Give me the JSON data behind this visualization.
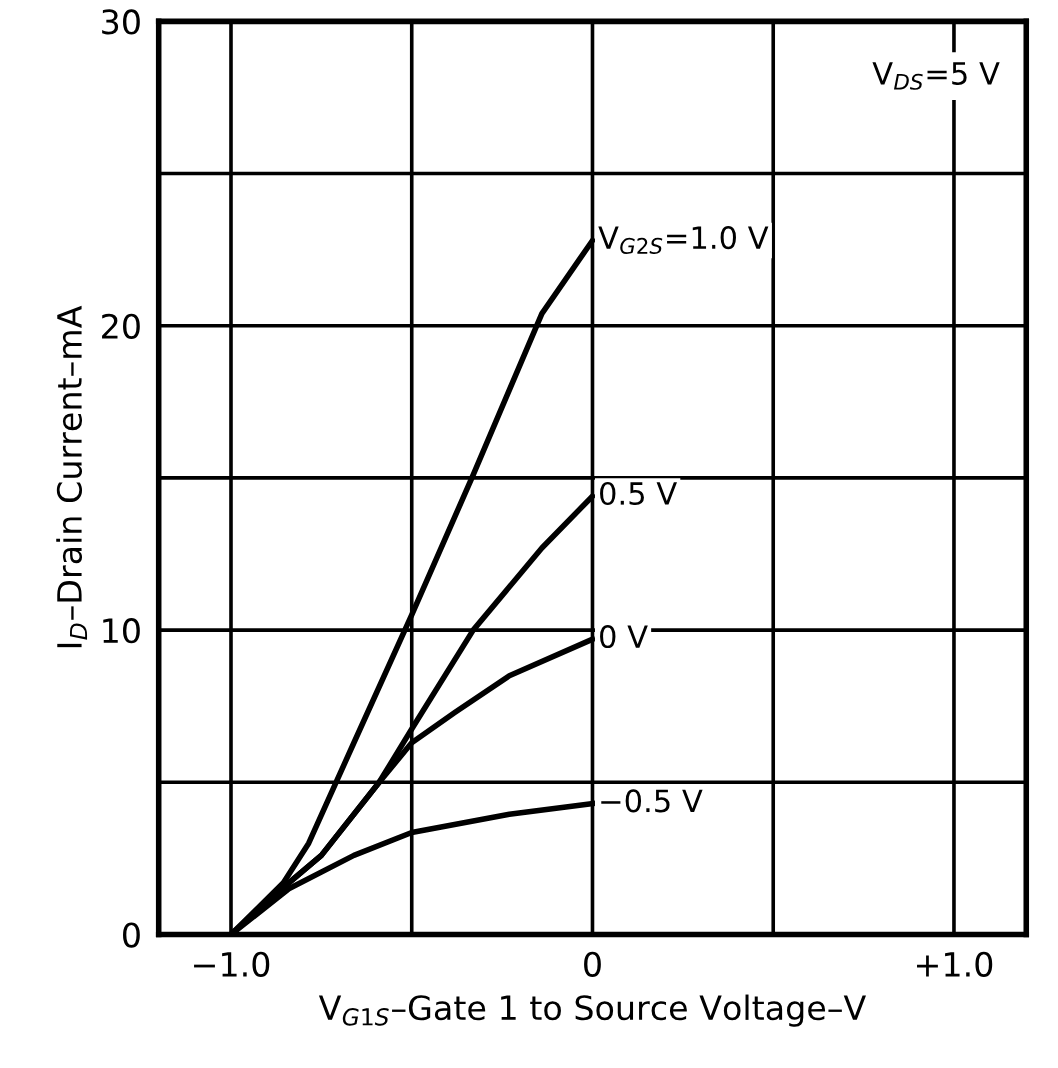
{
  "chart_data": {
    "type": "line",
    "xlabel": "V$_{G1S}$–Gate 1 to Source Voltage–V",
    "ylabel": "I$_{D}$–Drain Current–mA",
    "annotations": [
      "V$_{DS}$=5 V"
    ],
    "series": [
      {
        "name": "V$_{G2S}$=1.0 V",
        "color": "#000000",
        "x": [
          -1.0,
          -0.855,
          -0.785,
          -0.66,
          -0.5,
          -0.33,
          -0.14,
          0.0
        ],
        "values": [
          0,
          1.7,
          3.0,
          6.3,
          10.5,
          15.1,
          20.4,
          22.8
        ]
      },
      {
        "name": "0.5 V",
        "color": "#000000",
        "x": [
          -1.0,
          -0.84,
          -0.75,
          -0.59,
          -0.5,
          -0.33,
          -0.14,
          0.0
        ],
        "values": [
          0,
          1.7,
          2.6,
          5.0,
          6.75,
          10.0,
          12.7,
          14.4
        ]
      },
      {
        "name": "0 V",
        "color": "#000000",
        "x": [
          -1.0,
          -0.84,
          -0.75,
          -0.59,
          -0.5,
          -0.38,
          -0.23,
          0.0
        ],
        "values": [
          0,
          1.7,
          2.6,
          5.0,
          6.3,
          7.3,
          8.5,
          9.7
        ]
      },
      {
        "name": "−0.5 V",
        "color": "#000000",
        "x": [
          -1.0,
          -0.84,
          -0.66,
          -0.5,
          -0.23,
          0.0
        ],
        "values": [
          0,
          1.5,
          2.6,
          3.35,
          3.95,
          4.3
        ]
      }
    ],
    "xlim": [
      -1.2,
      1.2
    ],
    "xticks": [
      {
        "value": -1.0,
        "label": "−1.0"
      },
      {
        "value": -0.5,
        "label": null
      },
      0,
      {
        "value": 0.5,
        "label": null
      },
      {
        "value": 1.0,
        "label": "+1.0"
      }
    ],
    "ylim": [
      0,
      30
    ],
    "yticks": [
      0,
      {
        "value": 5,
        "label": null
      },
      10,
      {
        "value": 15,
        "label": null
      },
      20,
      {
        "value": 25,
        "label": null
      },
      30
    ],
    "grid": true,
    "legend": false,
    "marker": "none",
    "line_style": "solid"
  }
}
